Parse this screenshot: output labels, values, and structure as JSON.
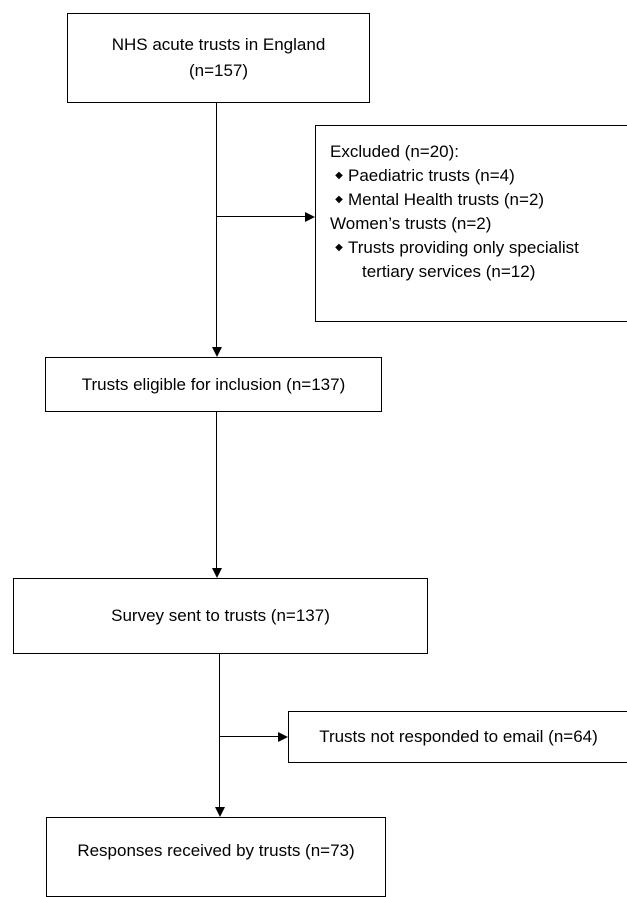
{
  "flow": {
    "top": {
      "line1": "NHS acute trusts in England",
      "line2": "(n=157)"
    },
    "excluded": {
      "heading": "Excluded (n=20):",
      "items": [
        "Paediatric trusts (n=4)",
        "Mental Health trusts (n=2)"
      ],
      "plain_item": "Women’s trusts (n=2)",
      "last_item_line1": "Trusts providing only specialist",
      "last_item_line2": "tertiary services (n=12)"
    },
    "eligible": "Trusts eligible for inclusion (n=137)",
    "survey": "Survey sent to trusts (n=137)",
    "not_responded": "Trusts not responded to email (n=64)",
    "responses": "Responses received by trusts (n=73)"
  },
  "icons": {
    "bullet": "diamond-bullet-icon"
  }
}
